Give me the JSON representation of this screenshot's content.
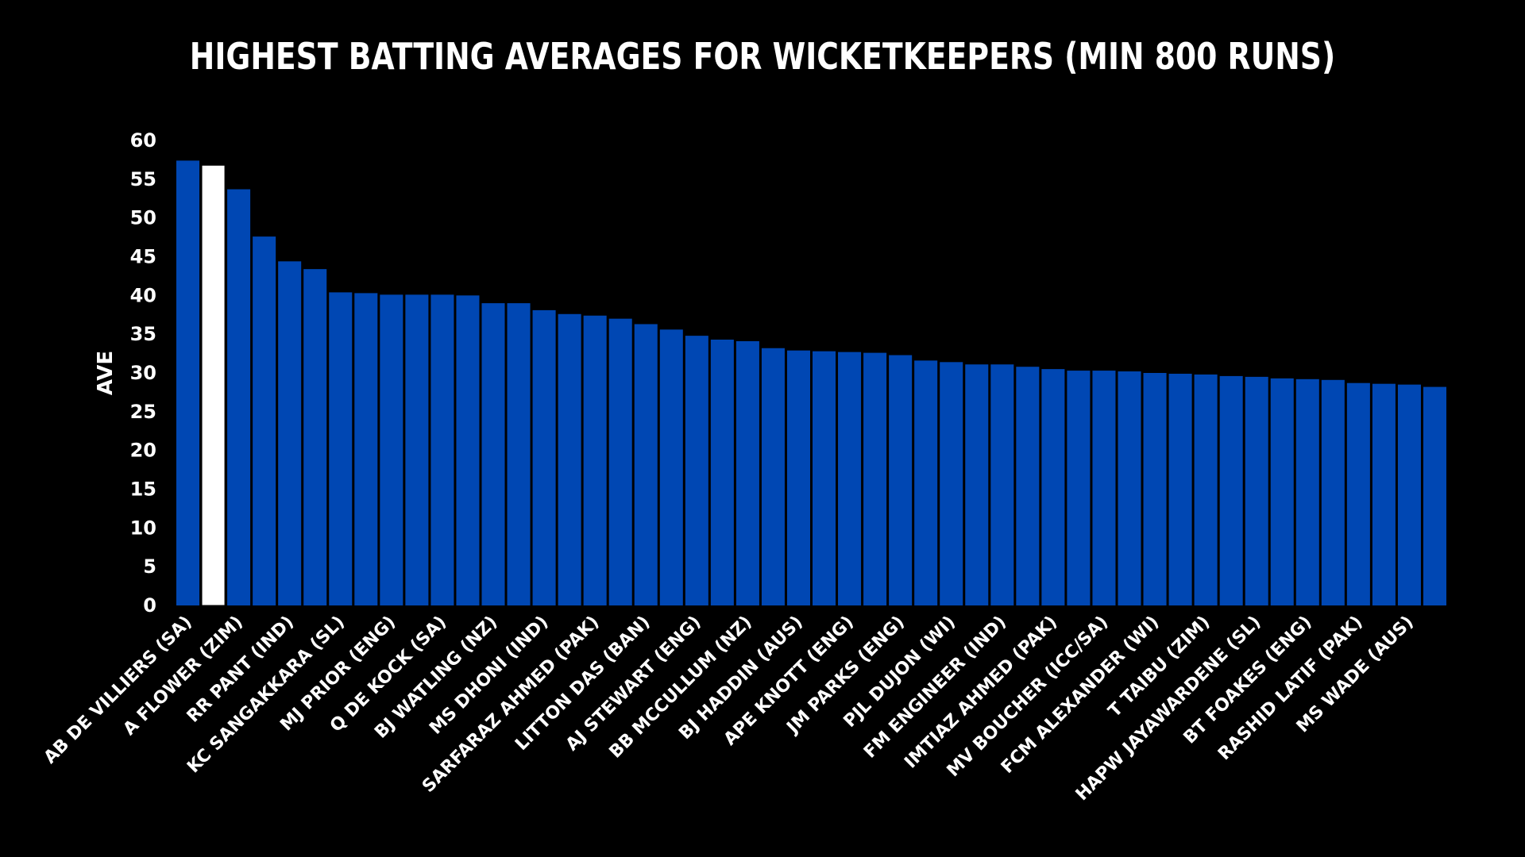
{
  "chart_data": {
    "type": "bar",
    "title": "HIGHEST BATTING AVERAGES FOR WICKETKEEPERS (MIN 800 RUNS)",
    "xlabel": "",
    "ylabel": "AVE",
    "ylim": [
      0,
      60
    ],
    "yticks": [
      0,
      5,
      10,
      15,
      20,
      25,
      30,
      35,
      40,
      45,
      50,
      55,
      60
    ],
    "grid": false,
    "legend": "none",
    "colors": {
      "background": "#000000",
      "bar": "#0047b3",
      "highlight": "#ffffff",
      "text": "#ffffff"
    },
    "categories": [
      "AB DE VILLIERS (SA)",
      "",
      "A FLOWER (ZIM)",
      "",
      "RR PANT (IND)",
      "",
      "KC SANGAKKARA (SL)",
      "",
      "MJ PRIOR (ENG)",
      "",
      "Q DE KOCK (SA)",
      "",
      "BJ WATLING (NZ)",
      "",
      "MS DHONI (IND)",
      "",
      "SARFARAZ AHMED (PAK)",
      "",
      "LITTON DAS (BAN)",
      "",
      "AJ STEWART (ENG)",
      "",
      "BB MCCULLUM (NZ)",
      "",
      "BJ HADDIN (AUS)",
      "",
      "APE KNOTT (ENG)",
      "",
      "JM PARKS (ENG)",
      "",
      "PJL DUJON (WI)",
      "",
      "FM ENGINEER (IND)",
      "",
      "IMTIAZ AHMED (PAK)",
      "",
      "MV BOUCHER (ICC/SA)",
      "",
      "FCM ALEXANDER (WI)",
      "",
      "T TAIBU (ZIM)",
      "",
      "HAPW JAYAWARDENE (SL)",
      "",
      "BT FOAKES (ENG)",
      "",
      "RASHID LATIF (PAK)",
      "",
      "MS WADE (AUS)",
      ""
    ],
    "values": [
      57.4,
      56.8,
      53.7,
      47.6,
      44.4,
      43.4,
      40.4,
      40.3,
      40.1,
      40.1,
      40.1,
      40.0,
      39.0,
      39.0,
      38.1,
      37.6,
      37.4,
      37.0,
      36.3,
      35.6,
      34.8,
      34.3,
      34.1,
      33.2,
      32.9,
      32.8,
      32.7,
      32.6,
      32.3,
      31.6,
      31.4,
      31.1,
      31.1,
      30.8,
      30.5,
      30.3,
      30.3,
      30.2,
      30.0,
      29.9,
      29.8,
      29.6,
      29.5,
      29.3,
      29.2,
      29.1,
      28.7,
      28.6,
      28.5,
      28.2
    ],
    "highlight_index": 1
  }
}
